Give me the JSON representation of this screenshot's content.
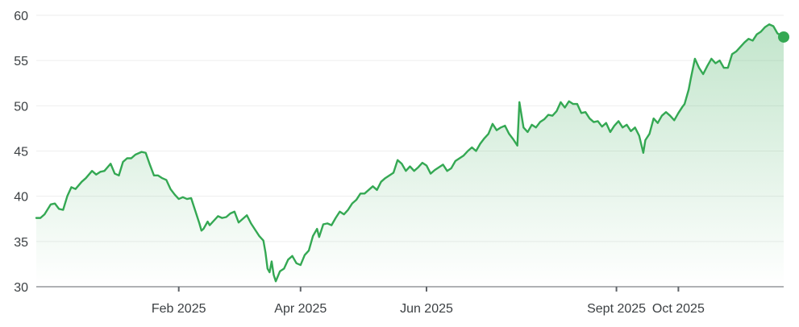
{
  "chart_data": {
    "type": "area",
    "title": "",
    "xlabel": "",
    "ylabel": "",
    "grid": true,
    "legend": "none",
    "colors": {
      "line": "#34a853",
      "fill": "#34a853",
      "grid": "#eeeeee",
      "axis": "#5f6368",
      "text": "#3c4043"
    },
    "ylim": [
      30,
      60
    ],
    "y_ticks": [
      "30",
      "35",
      "40",
      "45",
      "50",
      "55",
      "60"
    ],
    "x_ticks": [
      "Feb 2025",
      "Apr 2025",
      "Jun 2025",
      "Sept 2025",
      "Oct 2025"
    ],
    "x_tick_dates": [
      "2025-02-01",
      "2025-04-01",
      "2025-06-01",
      "2025-09-01",
      "2025-10-01"
    ],
    "x_range": [
      "2024-11-24",
      "2025-11-21"
    ],
    "series": [
      {
        "points": [
          [
            "2024-11-24",
            37.6
          ],
          [
            "2024-11-26",
            37.6
          ],
          [
            "2024-11-28",
            38.0
          ],
          [
            "2024-12-01",
            39.1
          ],
          [
            "2024-12-03",
            39.2
          ],
          [
            "2024-12-05",
            38.6
          ],
          [
            "2024-12-07",
            38.5
          ],
          [
            "2024-12-09",
            40.0
          ],
          [
            "2024-12-11",
            41.0
          ],
          [
            "2024-12-13",
            40.8
          ],
          [
            "2024-12-16",
            41.6
          ],
          [
            "2024-12-18",
            42.0
          ],
          [
            "2024-12-21",
            42.8
          ],
          [
            "2024-12-23",
            42.4
          ],
          [
            "2024-12-25",
            42.7
          ],
          [
            "2024-12-27",
            42.8
          ],
          [
            "2024-12-30",
            43.6
          ],
          [
            "2025-01-01",
            42.5
          ],
          [
            "2025-01-03",
            42.3
          ],
          [
            "2025-01-05",
            43.8
          ],
          [
            "2025-01-07",
            44.2
          ],
          [
            "2025-01-09",
            44.2
          ],
          [
            "2025-01-11",
            44.6
          ],
          [
            "2025-01-14",
            44.9
          ],
          [
            "2025-01-16",
            44.8
          ],
          [
            "2025-01-18",
            43.5
          ],
          [
            "2025-01-20",
            42.3
          ],
          [
            "2025-01-22",
            42.3
          ],
          [
            "2025-01-24",
            42.0
          ],
          [
            "2025-01-26",
            41.8
          ],
          [
            "2025-01-28",
            40.8
          ],
          [
            "2025-01-30",
            40.2
          ],
          [
            "2025-02-01",
            39.7
          ],
          [
            "2025-02-03",
            39.9
          ],
          [
            "2025-02-05",
            39.7
          ],
          [
            "2025-02-07",
            39.8
          ],
          [
            "2025-02-09",
            38.4
          ],
          [
            "2025-02-11",
            37.0
          ],
          [
            "2025-02-12",
            36.2
          ],
          [
            "2025-02-13",
            36.4
          ],
          [
            "2025-02-15",
            37.2
          ],
          [
            "2025-02-16",
            36.8
          ],
          [
            "2025-02-18",
            37.3
          ],
          [
            "2025-02-20",
            37.8
          ],
          [
            "2025-02-22",
            37.6
          ],
          [
            "2025-02-24",
            37.7
          ],
          [
            "2025-02-26",
            38.1
          ],
          [
            "2025-02-28",
            38.3
          ],
          [
            "2025-03-02",
            37.1
          ],
          [
            "2025-03-04",
            37.5
          ],
          [
            "2025-03-06",
            37.9
          ],
          [
            "2025-03-08",
            37.0
          ],
          [
            "2025-03-10",
            36.3
          ],
          [
            "2025-03-12",
            35.6
          ],
          [
            "2025-03-14",
            35.1
          ],
          [
            "2025-03-15",
            33.8
          ],
          [
            "2025-03-16",
            32.0
          ],
          [
            "2025-03-17",
            31.6
          ],
          [
            "2025-03-18",
            32.8
          ],
          [
            "2025-03-19",
            31.3
          ],
          [
            "2025-03-20",
            30.6
          ],
          [
            "2025-03-22",
            31.7
          ],
          [
            "2025-03-24",
            32.0
          ],
          [
            "2025-03-26",
            33.0
          ],
          [
            "2025-03-28",
            33.4
          ],
          [
            "2025-03-30",
            32.6
          ],
          [
            "2025-04-01",
            32.4
          ],
          [
            "2025-04-03",
            33.5
          ],
          [
            "2025-04-05",
            34.0
          ],
          [
            "2025-04-07",
            35.6
          ],
          [
            "2025-04-09",
            36.4
          ],
          [
            "2025-04-10",
            35.5
          ],
          [
            "2025-04-12",
            36.9
          ],
          [
            "2025-04-14",
            37.0
          ],
          [
            "2025-04-16",
            36.8
          ],
          [
            "2025-04-18",
            37.6
          ],
          [
            "2025-04-20",
            38.3
          ],
          [
            "2025-04-22",
            38.0
          ],
          [
            "2025-04-24",
            38.5
          ],
          [
            "2025-04-26",
            39.2
          ],
          [
            "2025-04-28",
            39.6
          ],
          [
            "2025-04-30",
            40.3
          ],
          [
            "2025-05-02",
            40.3
          ],
          [
            "2025-05-04",
            40.7
          ],
          [
            "2025-05-06",
            41.1
          ],
          [
            "2025-05-08",
            40.7
          ],
          [
            "2025-05-10",
            41.6
          ],
          [
            "2025-05-12",
            42.0
          ],
          [
            "2025-05-14",
            42.3
          ],
          [
            "2025-05-16",
            42.6
          ],
          [
            "2025-05-18",
            44.0
          ],
          [
            "2025-05-20",
            43.6
          ],
          [
            "2025-05-22",
            42.8
          ],
          [
            "2025-05-24",
            43.3
          ],
          [
            "2025-05-26",
            42.8
          ],
          [
            "2025-05-28",
            43.2
          ],
          [
            "2025-05-30",
            43.7
          ],
          [
            "2025-06-01",
            43.4
          ],
          [
            "2025-06-03",
            42.5
          ],
          [
            "2025-06-05",
            42.9
          ],
          [
            "2025-06-07",
            43.2
          ],
          [
            "2025-06-09",
            43.5
          ],
          [
            "2025-06-11",
            42.8
          ],
          [
            "2025-06-13",
            43.1
          ],
          [
            "2025-06-15",
            43.9
          ],
          [
            "2025-06-17",
            44.2
          ],
          [
            "2025-06-19",
            44.5
          ],
          [
            "2025-06-21",
            45.0
          ],
          [
            "2025-06-23",
            45.4
          ],
          [
            "2025-06-25",
            45.0
          ],
          [
            "2025-06-27",
            45.8
          ],
          [
            "2025-06-29",
            46.4
          ],
          [
            "2025-07-01",
            46.9
          ],
          [
            "2025-07-03",
            48.0
          ],
          [
            "2025-07-05",
            47.3
          ],
          [
            "2025-07-07",
            47.6
          ],
          [
            "2025-07-09",
            47.8
          ],
          [
            "2025-07-11",
            46.9
          ],
          [
            "2025-07-13",
            46.3
          ],
          [
            "2025-07-15",
            45.6
          ],
          [
            "2025-07-16",
            50.4
          ],
          [
            "2025-07-18",
            47.6
          ],
          [
            "2025-07-20",
            47.1
          ],
          [
            "2025-07-22",
            47.9
          ],
          [
            "2025-07-24",
            47.6
          ],
          [
            "2025-07-26",
            48.2
          ],
          [
            "2025-07-28",
            48.5
          ],
          [
            "2025-07-30",
            49.0
          ],
          [
            "2025-08-01",
            48.9
          ],
          [
            "2025-08-03",
            49.4
          ],
          [
            "2025-08-05",
            50.4
          ],
          [
            "2025-08-07",
            49.8
          ],
          [
            "2025-08-09",
            50.5
          ],
          [
            "2025-08-11",
            50.2
          ],
          [
            "2025-08-13",
            50.2
          ],
          [
            "2025-08-15",
            49.2
          ],
          [
            "2025-08-17",
            49.3
          ],
          [
            "2025-08-19",
            48.6
          ],
          [
            "2025-08-21",
            48.2
          ],
          [
            "2025-08-23",
            48.3
          ],
          [
            "2025-08-25",
            47.7
          ],
          [
            "2025-08-27",
            48.1
          ],
          [
            "2025-08-29",
            47.1
          ],
          [
            "2025-08-31",
            47.8
          ],
          [
            "2025-09-02",
            48.3
          ],
          [
            "2025-09-04",
            47.6
          ],
          [
            "2025-09-06",
            47.9
          ],
          [
            "2025-09-08",
            47.2
          ],
          [
            "2025-09-10",
            47.6
          ],
          [
            "2025-09-12",
            46.7
          ],
          [
            "2025-09-14",
            44.8
          ],
          [
            "2025-09-15",
            46.2
          ],
          [
            "2025-09-17",
            46.9
          ],
          [
            "2025-09-19",
            48.6
          ],
          [
            "2025-09-21",
            48.1
          ],
          [
            "2025-09-23",
            48.9
          ],
          [
            "2025-09-25",
            49.3
          ],
          [
            "2025-09-27",
            48.9
          ],
          [
            "2025-09-29",
            48.4
          ],
          [
            "2025-10-01",
            49.2
          ],
          [
            "2025-10-03",
            49.9
          ],
          [
            "2025-10-04",
            50.2
          ],
          [
            "2025-10-06",
            51.8
          ],
          [
            "2025-10-07",
            53.0
          ],
          [
            "2025-10-09",
            55.2
          ],
          [
            "2025-10-11",
            54.2
          ],
          [
            "2025-10-13",
            53.5
          ],
          [
            "2025-10-15",
            54.4
          ],
          [
            "2025-10-17",
            55.2
          ],
          [
            "2025-10-19",
            54.7
          ],
          [
            "2025-10-21",
            55.0
          ],
          [
            "2025-10-23",
            54.2
          ],
          [
            "2025-10-25",
            54.2
          ],
          [
            "2025-10-27",
            55.7
          ],
          [
            "2025-10-29",
            56.0
          ],
          [
            "2025-10-31",
            56.5
          ],
          [
            "2025-11-02",
            57.0
          ],
          [
            "2025-11-04",
            57.4
          ],
          [
            "2025-11-06",
            57.2
          ],
          [
            "2025-11-08",
            57.9
          ],
          [
            "2025-11-10",
            58.2
          ],
          [
            "2025-11-12",
            58.7
          ],
          [
            "2025-11-14",
            59.0
          ],
          [
            "2025-11-16",
            58.8
          ],
          [
            "2025-11-18",
            58.0
          ],
          [
            "2025-11-21",
            57.6
          ]
        ]
      }
    ]
  }
}
